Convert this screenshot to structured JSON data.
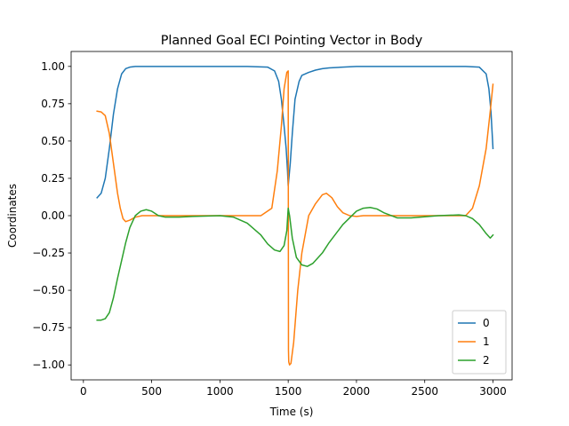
{
  "chart_data": {
    "type": "line",
    "title": "Planned Goal ECI Pointing Vector in Body",
    "xlabel": "Time (s)",
    "ylabel": "Coordinates",
    "xlim": [
      -90,
      3140
    ],
    "ylim": [
      -1.1,
      1.1
    ],
    "xticks": [
      0,
      500,
      1000,
      1500,
      2000,
      2500,
      3000
    ],
    "yticks": [
      -1.0,
      -0.75,
      -0.5,
      -0.25,
      0.0,
      0.25,
      0.5,
      0.75,
      1.0
    ],
    "ytick_labels": [
      "−1.00",
      "−0.75",
      "−0.50",
      "−0.25",
      "0.00",
      "0.25",
      "0.50",
      "0.75",
      "1.00"
    ],
    "grid": false,
    "legend_position": "lower right",
    "series": [
      {
        "name": "0",
        "color": "#1f77b4",
        "x": [
          100,
          130,
          160,
          190,
          220,
          250,
          280,
          310,
          340,
          380,
          450,
          600,
          800,
          1000,
          1200,
          1350,
          1400,
          1430,
          1450,
          1470,
          1485,
          1495,
          1500,
          1505,
          1515,
          1530,
          1550,
          1580,
          1600,
          1650,
          1700,
          1750,
          1800,
          1900,
          2000,
          2200,
          2400,
          2600,
          2800,
          2900,
          2950,
          2970,
          2985,
          3000
        ],
        "y": [
          0.12,
          0.15,
          0.25,
          0.45,
          0.68,
          0.85,
          0.95,
          0.985,
          0.995,
          1.0,
          1.0,
          1.0,
          1.0,
          1.0,
          1.0,
          0.995,
          0.97,
          0.9,
          0.78,
          0.6,
          0.45,
          0.3,
          0.2,
          0.25,
          0.35,
          0.55,
          0.78,
          0.9,
          0.94,
          0.96,
          0.975,
          0.985,
          0.99,
          0.995,
          1.0,
          1.0,
          1.0,
          1.0,
          1.0,
          0.995,
          0.95,
          0.85,
          0.7,
          0.45
        ]
      },
      {
        "name": "1",
        "color": "#ff7f0e",
        "x": [
          100,
          130,
          160,
          190,
          220,
          250,
          270,
          290,
          310,
          340,
          380,
          430,
          500,
          600,
          800,
          1000,
          1200,
          1300,
          1380,
          1420,
          1450,
          1470,
          1490,
          1500,
          1502,
          1504,
          1510,
          1520,
          1540,
          1570,
          1600,
          1650,
          1700,
          1750,
          1780,
          1820,
          1860,
          1900,
          1950,
          2000,
          2050,
          2150,
          2300,
          2500,
          2700,
          2800,
          2850,
          2900,
          2950,
          2980,
          3000
        ],
        "y": [
          0.7,
          0.695,
          0.67,
          0.55,
          0.35,
          0.15,
          0.05,
          -0.02,
          -0.04,
          -0.03,
          -0.01,
          0.0,
          0.0,
          0.0,
          0.0,
          0.0,
          0.0,
          0.0,
          0.05,
          0.3,
          0.6,
          0.85,
          0.96,
          0.97,
          -0.9,
          -0.98,
          -1.0,
          -0.99,
          -0.85,
          -0.5,
          -0.25,
          0.0,
          0.08,
          0.14,
          0.15,
          0.12,
          0.06,
          0.02,
          0.0,
          -0.005,
          0.0,
          0.0,
          0.0,
          0.0,
          0.0,
          0.0,
          0.05,
          0.2,
          0.45,
          0.7,
          0.88
        ]
      },
      {
        "name": "2",
        "color": "#2ca02c",
        "x": [
          100,
          130,
          160,
          190,
          220,
          250,
          280,
          310,
          340,
          380,
          420,
          460,
          500,
          550,
          600,
          700,
          800,
          1000,
          1100,
          1200,
          1300,
          1350,
          1400,
          1440,
          1470,
          1490,
          1500,
          1510,
          1530,
          1560,
          1600,
          1640,
          1680,
          1750,
          1800,
          1900,
          2000,
          2050,
          2100,
          2150,
          2200,
          2300,
          2400,
          2600,
          2750,
          2800,
          2850,
          2900,
          2950,
          2980,
          3000
        ],
        "y": [
          -0.7,
          -0.7,
          -0.69,
          -0.65,
          -0.55,
          -0.42,
          -0.3,
          -0.18,
          -0.08,
          0.0,
          0.03,
          0.04,
          0.03,
          0.0,
          -0.01,
          -0.01,
          -0.005,
          0.0,
          -0.01,
          -0.05,
          -0.13,
          -0.19,
          -0.23,
          -0.24,
          -0.2,
          -0.1,
          0.05,
          0.0,
          -0.15,
          -0.28,
          -0.33,
          -0.34,
          -0.32,
          -0.25,
          -0.18,
          -0.06,
          0.03,
          0.05,
          0.055,
          0.045,
          0.02,
          -0.015,
          -0.015,
          0.0,
          0.005,
          0.0,
          -0.02,
          -0.06,
          -0.12,
          -0.15,
          -0.13
        ]
      }
    ]
  }
}
